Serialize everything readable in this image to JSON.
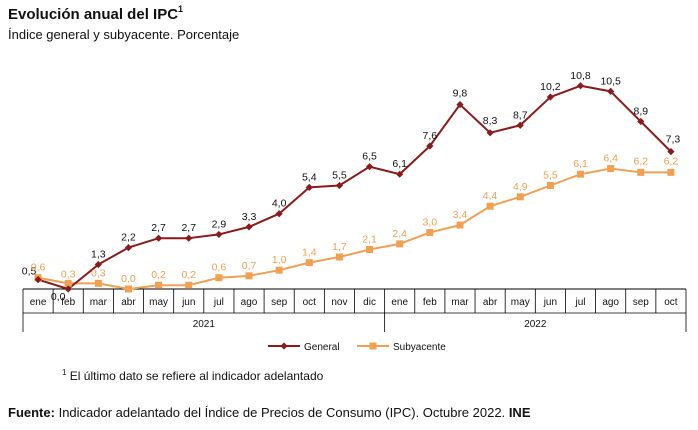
{
  "header": {
    "title": "Evolución anual del IPC",
    "title_sup": "1",
    "subtitle": "Índice general y subyacente. Porcentaje"
  },
  "footnote": {
    "mark": "1",
    "text": "El último dato se refiere al indicador adelantado"
  },
  "source": {
    "label": "Fuente:",
    "text": "Indicador adelantado del Índice de Precios de Consumo (IPC). Octubre 2022.",
    "org": "INE"
  },
  "chart_data": {
    "type": "line",
    "title": "Evolución anual del IPC",
    "subtitle": "Índice general y subyacente. Porcentaje",
    "categories": [
      "ene",
      "feb",
      "mar",
      "abr",
      "may",
      "jun",
      "jul",
      "ago",
      "sep",
      "oct",
      "nov",
      "dic",
      "ene",
      "feb",
      "mar",
      "abr",
      "may",
      "jun",
      "jul",
      "ago",
      "sep",
      "oct"
    ],
    "years": [
      {
        "label": "2021",
        "count": 12
      },
      {
        "label": "2022",
        "count": 10
      }
    ],
    "series": [
      {
        "name": "General",
        "color": "#8b1a1a",
        "marker": "diamond",
        "values": [
          0.5,
          0.0,
          1.3,
          2.2,
          2.7,
          2.7,
          2.9,
          3.3,
          4.0,
          5.4,
          5.5,
          6.5,
          6.1,
          7.6,
          9.8,
          8.3,
          8.7,
          10.2,
          10.8,
          10.5,
          8.9,
          7.3
        ],
        "labels": [
          "0,5",
          "0,0",
          "1,3",
          "2,2",
          "2,7",
          "2,7",
          "2,9",
          "3,3",
          "4,0",
          "5,4",
          "5,5",
          "6,5",
          "6,1",
          "7,6",
          "9,8",
          "8,3",
          "8,7",
          "10,2",
          "10,8",
          "10,5",
          "8,9",
          "7,3"
        ]
      },
      {
        "name": "Subyacente",
        "color": "#f0a050",
        "marker": "square",
        "values": [
          0.6,
          0.3,
          0.3,
          0.0,
          0.2,
          0.2,
          0.6,
          0.7,
          1.0,
          1.4,
          1.7,
          2.1,
          2.4,
          3.0,
          3.4,
          4.4,
          4.9,
          5.5,
          6.1,
          6.4,
          6.2,
          6.2
        ],
        "labels": [
          "0,6",
          "0,3",
          "0,3",
          "0,0",
          "0,2",
          "0,2",
          "0,6",
          "0,7",
          "1,0",
          "1,4",
          "1,7",
          "2,1",
          "2,4",
          "3,0",
          "3,4",
          "4,4",
          "4,9",
          "5,5",
          "6,1",
          "6,4",
          "6,2",
          "6,2"
        ]
      }
    ],
    "ylim": [
      0,
      11
    ],
    "grid": false,
    "legend": "bottom-center"
  }
}
